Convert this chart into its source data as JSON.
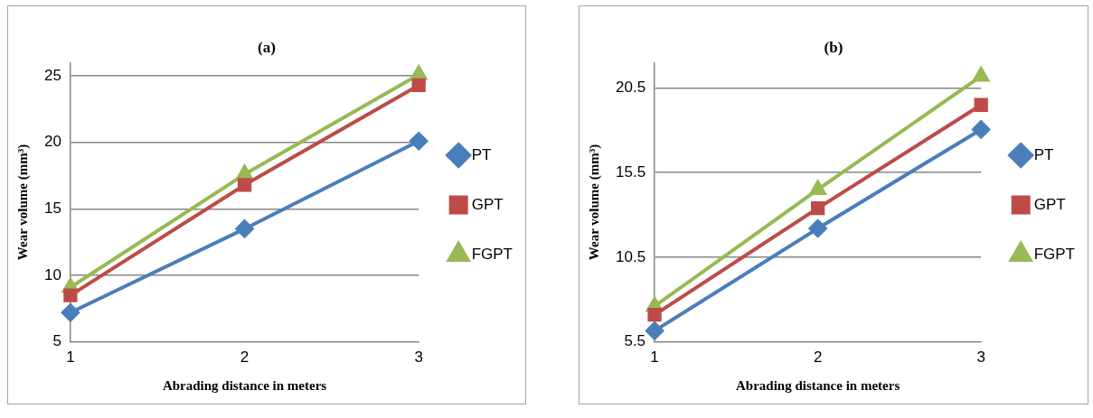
{
  "chart_data": [
    {
      "type": "line",
      "title": "(a)",
      "xlabel": "Abrading distance in meters",
      "ylabel": "Wear volume (mm³)",
      "categories": [
        "1",
        "2",
        "3"
      ],
      "ylim": [
        5,
        26
      ],
      "yticks": [
        5,
        10,
        15,
        20,
        25
      ],
      "grid": "y",
      "legend": "right",
      "line_style": "solid",
      "series": [
        {
          "name": "PT",
          "color": "#4a7ebb",
          "marker": "diamond",
          "values": [
            7.2,
            13.5,
            20.1
          ]
        },
        {
          "name": "GPT",
          "color": "#be4b48",
          "marker": "square",
          "values": [
            8.5,
            16.8,
            24.3
          ]
        },
        {
          "name": "FGPT",
          "color": "#98b954",
          "marker": "triangle",
          "values": [
            9.1,
            17.6,
            25.1
          ]
        }
      ]
    },
    {
      "type": "line",
      "title": "(b)",
      "xlabel": "Abrading distance in meters",
      "ylabel": "Wear volume (mm³)",
      "categories": [
        "1",
        "2",
        "3"
      ],
      "ylim": [
        5.5,
        22
      ],
      "yticks": [
        5.5,
        10.5,
        15.5,
        20.5
      ],
      "grid": "y",
      "legend": "right",
      "line_style": "solid",
      "series": [
        {
          "name": "PT",
          "color": "#4a7ebb",
          "marker": "diamond",
          "values": [
            6.15,
            12.2,
            18.05
          ]
        },
        {
          "name": "GPT",
          "color": "#be4b48",
          "marker": "square",
          "values": [
            7.1,
            13.4,
            19.5
          ]
        },
        {
          "name": "FGPT",
          "color": "#98b954",
          "marker": "triangle",
          "values": [
            7.6,
            14.5,
            21.2
          ]
        }
      ]
    }
  ]
}
